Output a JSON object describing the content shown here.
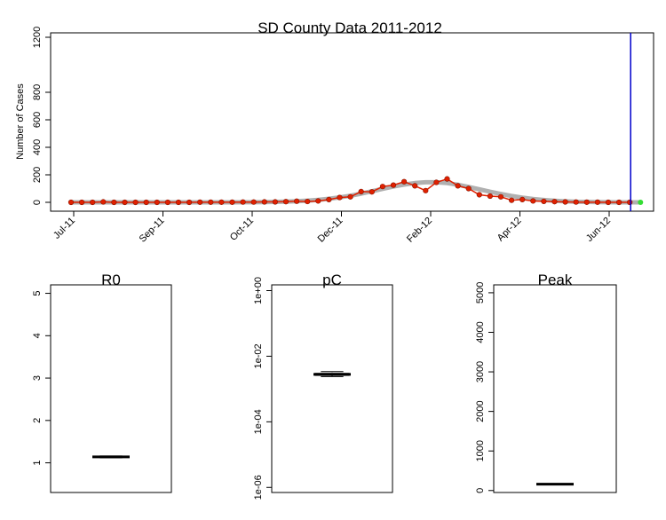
{
  "chart_data": [
    {
      "type": "line",
      "title": "SD County Data 2011-2012",
      "ylabel": "Number of Cases",
      "xlabel": "",
      "ylim": [
        0,
        1200
      ],
      "yticks": [
        "0",
        "200",
        "400",
        "600",
        "800",
        "1200"
      ],
      "xticks": [
        "Jul-11",
        "Sep-11",
        "Oct-11",
        "Dec-11",
        "Feb-12",
        "Apr-12",
        "Jun-12"
      ],
      "vline_index": 52,
      "projection_index": 53,
      "observed": [
        0,
        0,
        0,
        3,
        0,
        0,
        0,
        0,
        0,
        0,
        0,
        0,
        1,
        1,
        1,
        1,
        2,
        2,
        3,
        3,
        5,
        8,
        6,
        10,
        20,
        35,
        40,
        78,
        76,
        115,
        125,
        150,
        120,
        85,
        145,
        170,
        120,
        100,
        55,
        45,
        40,
        15,
        20,
        10,
        7,
        5,
        3,
        2,
        1,
        1,
        0,
        0,
        0
      ],
      "fit": [
        0,
        0,
        0,
        0,
        0,
        0,
        0,
        0,
        0,
        0,
        0,
        0,
        0,
        0,
        0,
        0,
        1,
        1,
        2,
        3,
        5,
        8,
        12,
        18,
        26,
        36,
        48,
        63,
        80,
        98,
        115,
        129,
        140,
        146,
        146,
        140,
        128,
        112,
        95,
        77,
        61,
        46,
        34,
        24,
        17,
        11,
        7,
        4,
        3,
        2,
        1,
        0,
        0,
        0
      ],
      "colors": {
        "observed": "#e02000",
        "fit": "#b0b0b0",
        "vline": "#0000cc",
        "projection": "#33dd33"
      }
    },
    {
      "type": "box",
      "title": "R0",
      "ylim": [
        0.3,
        5.2
      ],
      "yticks": [
        "1",
        "2",
        "3",
        "4",
        "5"
      ],
      "median": 1.14,
      "q1": 1.13,
      "q3": 1.15,
      "whisker_low": 1.12,
      "whisker_high": 1.16
    },
    {
      "type": "box",
      "title": "pC",
      "scale": "log",
      "ylim": [
        7e-07,
        1.5
      ],
      "yticks": [
        "1e-06",
        "1e-04",
        "1e-02",
        "1e+00"
      ],
      "median": 0.0028,
      "q1": 0.0026,
      "q3": 0.003,
      "whisker_low": 0.0024,
      "whisker_high": 0.0034
    },
    {
      "type": "box",
      "title": "Peak",
      "ylim": [
        -50,
        5200
      ],
      "yticks": [
        "0",
        "1000",
        "2000",
        "3000",
        "4000",
        "5000"
      ],
      "median": 160,
      "q1": 155,
      "q3": 165,
      "whisker_low": 150,
      "whisker_high": 170
    }
  ]
}
